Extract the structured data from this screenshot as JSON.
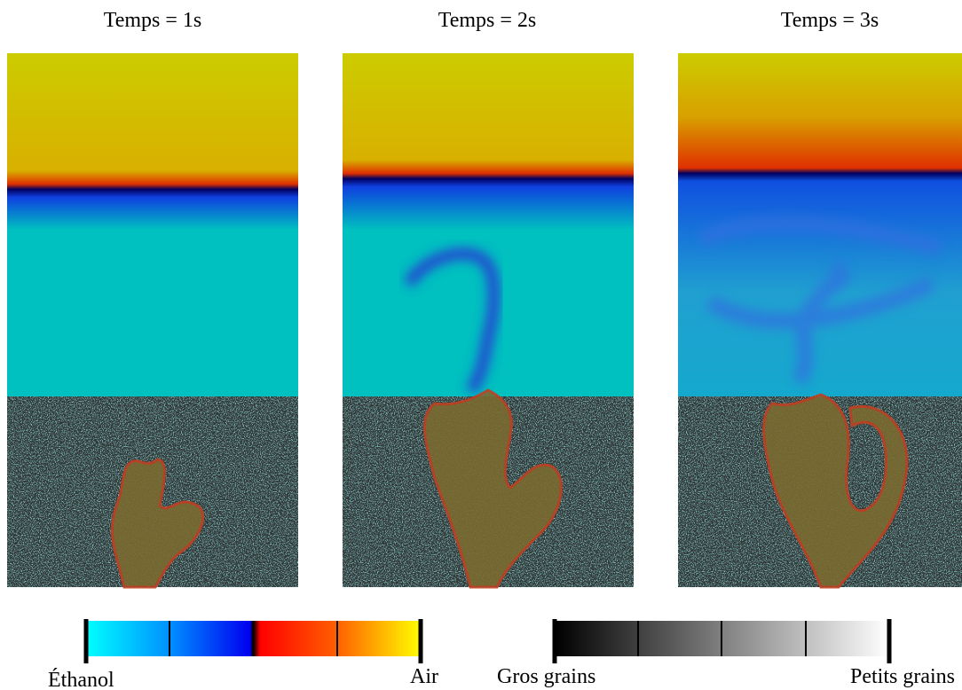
{
  "panels": [
    {
      "title": "Temps = 1s"
    },
    {
      "title": "Temps = 2s"
    },
    {
      "title": "Temps = 3s"
    }
  ],
  "colorbars": [
    {
      "min_label": "Éthanol",
      "max_label": "Air"
    },
    {
      "min_label": "Gros grains",
      "max_label": "Petits grains"
    }
  ]
}
